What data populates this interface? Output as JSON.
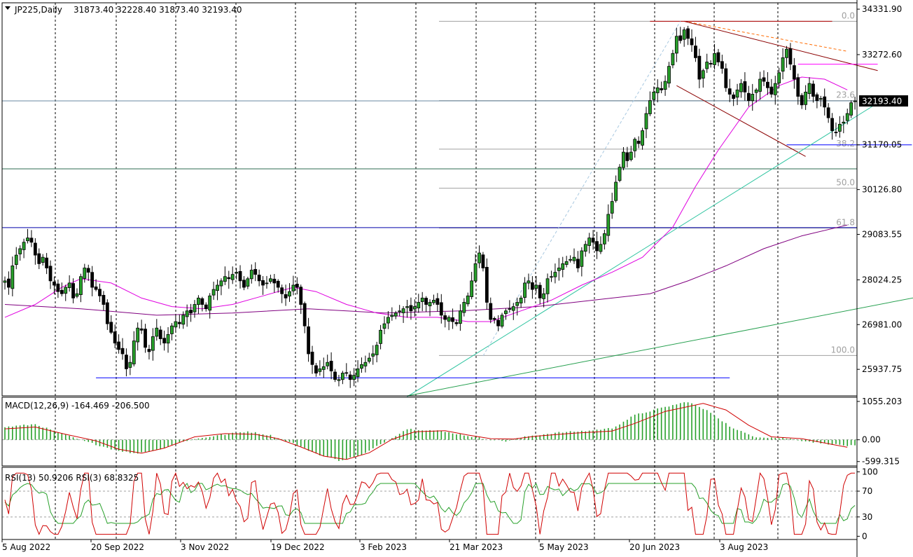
{
  "chart_data": {
    "type": "candlestick",
    "main": {
      "symbol": "JP225,Daily",
      "ohlc": "31873.40 32228.40 31873.40 32193.40",
      "last_price_label": "32193.40",
      "y_ticks": [
        "34331.90",
        "33272.60",
        "31170.05",
        "30126.80",
        "29083.55",
        "28024.25",
        "26981.00",
        "25937.75"
      ],
      "ylim": [
        25320,
        34480
      ],
      "last_price": 32193.4,
      "fib_levels": [
        {
          "label": "0.0",
          "value": 34050
        },
        {
          "label": "23.6",
          "value": 32200
        },
        {
          "label": "38.2",
          "value": 31070
        },
        {
          "label": "50.0",
          "value": 30160
        },
        {
          "label": "61.8",
          "value": 29230
        },
        {
          "label": "100.0",
          "value": 26260
        }
      ],
      "closes": [
        28000,
        27850,
        28350,
        28600,
        28750,
        28900,
        29000,
        28900,
        28600,
        28400,
        28550,
        28300,
        28000,
        27900,
        27750,
        27700,
        27850,
        27950,
        27600,
        27700,
        28100,
        28300,
        28200,
        27850,
        27800,
        27650,
        27450,
        27000,
        26800,
        26550,
        26400,
        26300,
        25950,
        26100,
        26600,
        26900,
        26850,
        26450,
        26350,
        26700,
        26900,
        26650,
        26550,
        26750,
        26950,
        27050,
        27000,
        27200,
        27300,
        27250,
        27450,
        27600,
        27450,
        27350,
        27650,
        27800,
        27900,
        28000,
        28100,
        28050,
        28150,
        28200,
        28000,
        27850,
        28050,
        28250,
        28150,
        28000,
        27900,
        27950,
        28050,
        27950,
        27850,
        27700,
        27600,
        27750,
        27900,
        27850,
        27450,
        26950,
        26300,
        26050,
        25850,
        25950,
        26000,
        26100,
        25900,
        25700,
        25700,
        25850,
        25850,
        25700,
        25800,
        25950,
        26050,
        26100,
        26200,
        26300,
        26500,
        26850,
        27000,
        27150,
        27200,
        27250,
        27300,
        27350,
        27400,
        27300,
        27400,
        27500,
        27600,
        27450,
        27500,
        27550,
        27450,
        27200,
        27100,
        27150,
        27050,
        27000,
        27300,
        27500,
        27650,
        28000,
        28400,
        28650,
        28300,
        27500,
        27100,
        27100,
        26950,
        27200,
        27300,
        27350,
        27400,
        27500,
        27600,
        27950,
        28000,
        27800,
        27900,
        27600,
        27700,
        28050,
        28100,
        28200,
        28300,
        28400,
        28450,
        28500,
        28550,
        28300,
        28700,
        28850,
        29000,
        28900,
        28700,
        28850,
        29100,
        29550,
        29850,
        30300,
        30650,
        31000,
        30800,
        31000,
        31300,
        31200,
        31500,
        31900,
        32200,
        32400,
        32500,
        32450,
        32650,
        33000,
        33300,
        33700,
        33600,
        33850,
        33650,
        33500,
        33200,
        32700,
        32900,
        33100,
        33050,
        33300,
        33100,
        32950,
        32500,
        32350,
        32250,
        32450,
        32600,
        32400,
        32200,
        32350,
        32450,
        32700,
        32650,
        32500,
        32350,
        32600,
        32850,
        33200,
        33400,
        33050,
        32700,
        32300,
        32100,
        32400,
        32600,
        32300,
        32200,
        32250,
        32050,
        31800,
        31500,
        31450,
        31650,
        31700,
        31900,
        32150,
        32193
      ],
      "ma_fast": [
        {
          "x": 0,
          "y": 27150
        },
        {
          "x": 8,
          "y": 27450
        },
        {
          "x": 15,
          "y": 27850
        },
        {
          "x": 20,
          "y": 28050
        },
        {
          "x": 28,
          "y": 27950
        },
        {
          "x": 36,
          "y": 27600
        },
        {
          "x": 44,
          "y": 27400
        },
        {
          "x": 52,
          "y": 27350
        },
        {
          "x": 60,
          "y": 27450
        },
        {
          "x": 68,
          "y": 27650
        },
        {
          "x": 76,
          "y": 27850
        },
        {
          "x": 82,
          "y": 27750
        },
        {
          "x": 90,
          "y": 27450
        },
        {
          "x": 98,
          "y": 27250
        },
        {
          "x": 106,
          "y": 27150
        },
        {
          "x": 114,
          "y": 27150
        },
        {
          "x": 122,
          "y": 27050
        },
        {
          "x": 128,
          "y": 27050
        },
        {
          "x": 136,
          "y": 27300
        },
        {
          "x": 144,
          "y": 27550
        },
        {
          "x": 152,
          "y": 27900
        },
        {
          "x": 160,
          "y": 28200
        },
        {
          "x": 168,
          "y": 28550
        },
        {
          "x": 176,
          "y": 29250
        },
        {
          "x": 182,
          "y": 30200
        },
        {
          "x": 188,
          "y": 31050
        },
        {
          "x": 196,
          "y": 32050
        },
        {
          "x": 204,
          "y": 32550
        },
        {
          "x": 210,
          "y": 32750
        },
        {
          "x": 216,
          "y": 32700
        },
        {
          "x": 222,
          "y": 32450
        }
      ],
      "ma_slow": [
        {
          "x": 0,
          "y": 27450
        },
        {
          "x": 20,
          "y": 27350
        },
        {
          "x": 40,
          "y": 27200
        },
        {
          "x": 60,
          "y": 27250
        },
        {
          "x": 80,
          "y": 27350
        },
        {
          "x": 100,
          "y": 27250
        },
        {
          "x": 120,
          "y": 27300
        },
        {
          "x": 140,
          "y": 27400
        },
        {
          "x": 150,
          "y": 27500
        },
        {
          "x": 160,
          "y": 27600
        },
        {
          "x": 170,
          "y": 27700
        },
        {
          "x": 180,
          "y": 28000
        },
        {
          "x": 190,
          "y": 28350
        },
        {
          "x": 200,
          "y": 28750
        },
        {
          "x": 210,
          "y": 29050
        },
        {
          "x": 222,
          "y": 29300
        }
      ],
      "lines": [
        {
          "color": "#ff6a00",
          "dashed": true,
          "from": {
            "x": 179,
            "y": 34050
          },
          "to": {
            "x": 222,
            "y": 33350
          }
        },
        {
          "color": "#8b0000",
          "dashed": false,
          "from": {
            "x": 179,
            "y": 34050
          },
          "to": {
            "x": 230,
            "y": 32900
          }
        },
        {
          "color": "#8b0000",
          "dashed": false,
          "from": {
            "x": 177,
            "y": 32550
          },
          "to": {
            "x": 211,
            "y": 30900
          }
        },
        {
          "color": "#b00000",
          "dashed": false,
          "from": {
            "x": 170,
            "y": 34050
          },
          "to": {
            "x": 218,
            "y": 34050
          }
        },
        {
          "color": "#ff00ff",
          "dashed": false,
          "from": {
            "x": 209,
            "y": 33050
          },
          "to": {
            "x": 230,
            "y": 33050
          }
        },
        {
          "color": "#0000ff",
          "dashed": false,
          "from": {
            "x": 206,
            "y": 31170
          },
          "to": {
            "x": 239,
            "y": 31170
          }
        },
        {
          "color": "#2ec4a0",
          "dashed": false,
          "from": {
            "x": 106,
            "y": 25300
          },
          "to": {
            "x": 231,
            "y": 32200
          }
        },
        {
          "color": "#27a050",
          "dashed": false,
          "from": {
            "x": 106,
            "y": 25320
          },
          "to": {
            "x": 245,
            "y": 27700
          }
        },
        {
          "color": "#0000ff",
          "dashed": false,
          "from": {
            "x": 24,
            "y": 25740
          },
          "to": {
            "x": 191,
            "y": 25740
          }
        },
        {
          "color": "#a8c8e0",
          "dashed": true,
          "from": {
            "x": 126,
            "y": 26250
          },
          "to": {
            "x": 178,
            "y": 34050
          }
        }
      ],
      "hlines": [
        {
          "color": "#6a8aa0",
          "value": 32193.4,
          "full": true
        },
        {
          "color": "#2e6b50",
          "value": 30610,
          "full": true
        },
        {
          "color": "#0000aa",
          "value": 29240,
          "full": true
        }
      ]
    },
    "macd": {
      "label": "MACD(12,26,9) -164.469 -206.500",
      "y_ticks": [
        "1055.203",
        "0.00",
        "-599.315"
      ],
      "ylim": [
        -720,
        1170
      ],
      "histogram_anchor": [
        {
          "x": 0,
          "y": 350
        },
        {
          "x": 8,
          "y": 430
        },
        {
          "x": 14,
          "y": 200
        },
        {
          "x": 20,
          "y": -10
        },
        {
          "x": 28,
          "y": -250
        },
        {
          "x": 34,
          "y": -380
        },
        {
          "x": 40,
          "y": -280
        },
        {
          "x": 48,
          "y": -20
        },
        {
          "x": 56,
          "y": 120
        },
        {
          "x": 64,
          "y": 230
        },
        {
          "x": 70,
          "y": 120
        },
        {
          "x": 76,
          "y": -100
        },
        {
          "x": 82,
          "y": -380
        },
        {
          "x": 88,
          "y": -570
        },
        {
          "x": 94,
          "y": -430
        },
        {
          "x": 100,
          "y": -60
        },
        {
          "x": 106,
          "y": 300
        },
        {
          "x": 114,
          "y": 250
        },
        {
          "x": 120,
          "y": 150
        },
        {
          "x": 126,
          "y": 30
        },
        {
          "x": 132,
          "y": -40
        },
        {
          "x": 138,
          "y": 100
        },
        {
          "x": 146,
          "y": 200
        },
        {
          "x": 154,
          "y": 250
        },
        {
          "x": 160,
          "y": 320
        },
        {
          "x": 166,
          "y": 680
        },
        {
          "x": 174,
          "y": 900
        },
        {
          "x": 180,
          "y": 1050
        },
        {
          "x": 186,
          "y": 750
        },
        {
          "x": 192,
          "y": 300
        },
        {
          "x": 198,
          "y": 80
        },
        {
          "x": 206,
          "y": 40
        },
        {
          "x": 214,
          "y": -80
        },
        {
          "x": 222,
          "y": -165
        }
      ],
      "signal_anchor": [
        {
          "x": 0,
          "y": 300
        },
        {
          "x": 8,
          "y": 350
        },
        {
          "x": 16,
          "y": 150
        },
        {
          "x": 24,
          "y": -30
        },
        {
          "x": 30,
          "y": -260
        },
        {
          "x": 36,
          "y": -370
        },
        {
          "x": 42,
          "y": -230
        },
        {
          "x": 50,
          "y": 80
        },
        {
          "x": 58,
          "y": 170
        },
        {
          "x": 66,
          "y": 150
        },
        {
          "x": 72,
          "y": 30
        },
        {
          "x": 78,
          "y": -200
        },
        {
          "x": 84,
          "y": -450
        },
        {
          "x": 90,
          "y": -540
        },
        {
          "x": 96,
          "y": -360
        },
        {
          "x": 102,
          "y": 10
        },
        {
          "x": 108,
          "y": 220
        },
        {
          "x": 116,
          "y": 250
        },
        {
          "x": 122,
          "y": 130
        },
        {
          "x": 128,
          "y": 30
        },
        {
          "x": 134,
          "y": 20
        },
        {
          "x": 140,
          "y": 100
        },
        {
          "x": 150,
          "y": 180
        },
        {
          "x": 160,
          "y": 240
        },
        {
          "x": 166,
          "y": 450
        },
        {
          "x": 174,
          "y": 780
        },
        {
          "x": 184,
          "y": 1000
        },
        {
          "x": 190,
          "y": 820
        },
        {
          "x": 196,
          "y": 400
        },
        {
          "x": 202,
          "y": 80
        },
        {
          "x": 210,
          "y": 30
        },
        {
          "x": 222,
          "y": -207
        }
      ]
    },
    "rsi": {
      "label": "RSI(13) 50.9206  RSI(3) 68.8325",
      "y_ticks": [
        "100",
        "70",
        "30",
        "0"
      ],
      "ylim": [
        -5,
        107
      ],
      "levels": [
        70,
        30
      ]
    },
    "x_ticks": [
      "5 Aug 2022",
      "20 Sep 2022",
      "3 Nov 2022",
      "19 Dec 2022",
      "3 Feb 2023",
      "21 Mar 2023",
      "5 May 2023",
      "20 Jun 2023",
      "3 Aug 2023"
    ],
    "colors": {
      "up": "#000000",
      "down": "#000000",
      "up_fill": "#27a02a",
      "ma_fast": "#e000e0",
      "ma_slow": "#800080",
      "macd_hist": "#27a02a",
      "macd_signal": "#d00000",
      "rsi13": "#27a02a",
      "rsi3": "#d00000",
      "fib": "#a0a0a0"
    }
  }
}
